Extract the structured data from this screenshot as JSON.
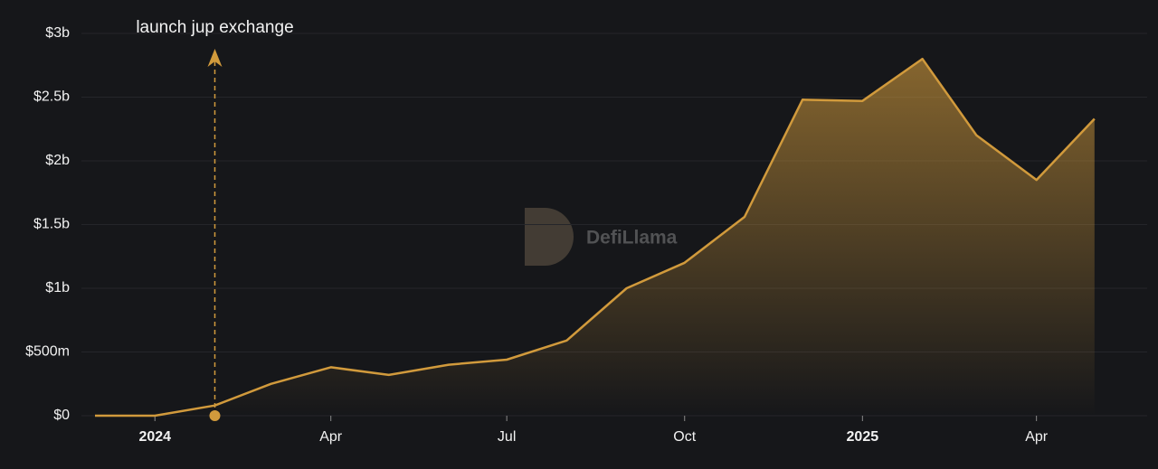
{
  "chart_data": {
    "type": "area",
    "watermark": "DefiLlama",
    "x": [
      "2023-12",
      "2024-01",
      "2024-02",
      "2024-03",
      "2024-04",
      "2024-05",
      "2024-06",
      "2024-07",
      "2024-08",
      "2024-09",
      "2024-10",
      "2024-11",
      "2024-12",
      "2025-01",
      "2025-02",
      "2025-03",
      "2025-04",
      "2025-05"
    ],
    "series": [
      {
        "color": "#d19a3c",
        "values": [
          0,
          0,
          80000000,
          250000000,
          380000000,
          320000000,
          400000000,
          440000000,
          590000000,
          1000000000,
          1200000000,
          1560000000,
          2480000000,
          2470000000,
          2800000000,
          2200000000,
          1850000000,
          2330000000
        ]
      }
    ],
    "xlim": [
      "2023-12",
      "2025-06"
    ],
    "xticks": [
      {
        "value": "2024-01",
        "label": "2024"
      },
      {
        "value": "2024-04",
        "label": "Apr"
      },
      {
        "value": "2024-07",
        "label": "Jul"
      },
      {
        "value": "2024-10",
        "label": "Oct"
      },
      {
        "value": "2025-01",
        "label": "2025"
      },
      {
        "value": "2025-04",
        "label": "Apr"
      }
    ],
    "ylim": [
      0,
      3000000000
    ],
    "yticks": [
      {
        "value": 0,
        "label": "$0"
      },
      {
        "value": 500000000,
        "label": "$500m"
      },
      {
        "value": 1000000000,
        "label": "$1b"
      },
      {
        "value": 1500000000,
        "label": "$1.5b"
      },
      {
        "value": 2000000000,
        "label": "$2b"
      },
      {
        "value": 2500000000,
        "label": "$2.5b"
      },
      {
        "value": 3000000000,
        "label": "$3b"
      }
    ],
    "grid": true,
    "annotations": [
      {
        "x": "2024-02",
        "text": "launch jup exchange"
      }
    ]
  }
}
